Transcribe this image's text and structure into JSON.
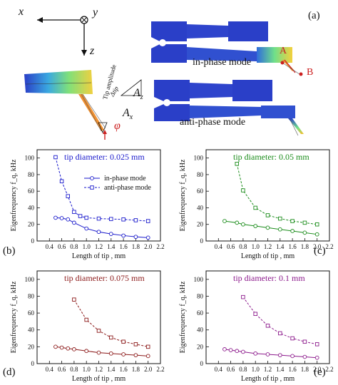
{
  "figure": {
    "panel_letters": {
      "a": "(a)",
      "b": "(b)",
      "c": "(c)",
      "d": "(d)",
      "e": "(e)"
    },
    "axes_glyph": {
      "x": "x",
      "y": "y",
      "z": "z"
    },
    "schematic_labels": {
      "in_phase": "in-phase mode",
      "anti_phase": "anti-phase mode",
      "point_a": "A",
      "point_b": "B",
      "tip_amplitude": "Tip amplitude",
      "delta_tip": "Δtip",
      "a_z": "A",
      "a_z_sub": "z",
      "a_x": "A",
      "a_x_sub": "x",
      "phi": "φ"
    }
  },
  "chart_data": [
    {
      "type": "line",
      "id": "b",
      "annotation": "tip diameter: 0.025 mm",
      "annotation_color": "#1a1acc",
      "series_color": "#1a1acc",
      "xlabel": "Length of tip , mm",
      "ylabel": "Eigenfrequency f_q, kHz",
      "xlim": [
        0.2,
        2.2
      ],
      "ylim": [
        0,
        110
      ],
      "xticks": [
        0.4,
        0.6,
        0.8,
        1.0,
        1.2,
        1.4,
        1.6,
        1.8,
        2.0,
        2.2
      ],
      "yticks": [
        0,
        20,
        40,
        60,
        80,
        100
      ],
      "legend": [
        "in-phase mode",
        "anti-phase mode"
      ],
      "series": [
        {
          "name": "in-phase mode",
          "style": "solid-circle",
          "x": [
            0.5,
            0.6,
            0.7,
            0.8,
            1.0,
            1.2,
            1.4,
            1.6,
            1.8,
            2.0
          ],
          "y": [
            28,
            27.5,
            26,
            22,
            15,
            11,
            8.5,
            6.5,
            5,
            4
          ]
        },
        {
          "name": "anti-phase mode",
          "style": "dashed-square",
          "x": [
            0.5,
            0.6,
            0.7,
            0.8,
            0.9,
            1.0,
            1.2,
            1.4,
            1.6,
            1.8,
            2.0
          ],
          "y": [
            101,
            72,
            54,
            35,
            30,
            28,
            27,
            26.5,
            26,
            25,
            24
          ]
        }
      ]
    },
    {
      "type": "line",
      "id": "c",
      "annotation": "tip diameter: 0.05 mm",
      "annotation_color": "#1a8c1a",
      "series_color": "#1a8c1a",
      "xlabel": "Length of tip , mm",
      "ylabel": "Eigenfrequency f_q, kHz",
      "xlim": [
        0.2,
        2.2
      ],
      "ylim": [
        0,
        110
      ],
      "xticks": [
        0.4,
        0.6,
        0.8,
        1.0,
        1.2,
        1.4,
        1.6,
        1.8,
        2.0,
        2.2
      ],
      "yticks": [
        0,
        20,
        40,
        60,
        80,
        100
      ],
      "series": [
        {
          "name": "in-phase mode",
          "style": "solid-circle",
          "x": [
            0.5,
            0.7,
            0.8,
            1.0,
            1.2,
            1.4,
            1.6,
            1.8,
            2.0
          ],
          "y": [
            24,
            22,
            20,
            18,
            16,
            14,
            12,
            10,
            8
          ]
        },
        {
          "name": "anti-phase mode",
          "style": "dashed-square",
          "x": [
            0.7,
            0.8,
            1.0,
            1.2,
            1.4,
            1.6,
            1.8,
            2.0
          ],
          "y": [
            93,
            61,
            40,
            31,
            27,
            24,
            22,
            20
          ]
        }
      ]
    },
    {
      "type": "line",
      "id": "d",
      "annotation": "tip diameter: 0.075 mm",
      "annotation_color": "#8c1a1a",
      "series_color": "#8c1a1a",
      "xlabel": "Length of tip , mm",
      "ylabel": "Eigenfrequency f_q, kHz",
      "xlim": [
        0.2,
        2.2
      ],
      "ylim": [
        0,
        110
      ],
      "xticks": [
        0.4,
        0.6,
        0.8,
        1.0,
        1.2,
        1.4,
        1.6,
        1.8,
        2.0,
        2.2
      ],
      "yticks": [
        0,
        20,
        40,
        60,
        80,
        100
      ],
      "series": [
        {
          "name": "in-phase mode",
          "style": "solid-circle",
          "x": [
            0.5,
            0.6,
            0.7,
            0.8,
            1.0,
            1.2,
            1.4,
            1.6,
            1.8,
            2.0
          ],
          "y": [
            20,
            19,
            18,
            17,
            15,
            13,
            12,
            11,
            10,
            9
          ]
        },
        {
          "name": "anti-phase mode",
          "style": "dashed-square",
          "x": [
            0.8,
            1.0,
            1.2,
            1.4,
            1.6,
            1.8,
            2.0
          ],
          "y": [
            76,
            52,
            39,
            31,
            26,
            23,
            20
          ]
        }
      ]
    },
    {
      "type": "line",
      "id": "e",
      "annotation": "tip diameter: 0.1 mm",
      "annotation_color": "#8c1a8c",
      "series_color": "#8c1a8c",
      "xlabel": "Length of tip , mm",
      "ylabel": "Eigenfrequency f_q, kHz",
      "xlim": [
        0.2,
        2.2
      ],
      "ylim": [
        0,
        110
      ],
      "xticks": [
        0.4,
        0.6,
        0.8,
        1.0,
        1.2,
        1.4,
        1.6,
        1.8,
        2.0,
        2.2
      ],
      "yticks": [
        0,
        20,
        40,
        60,
        80,
        100
      ],
      "series": [
        {
          "name": "in-phase mode",
          "style": "solid-circle",
          "x": [
            0.5,
            0.6,
            0.7,
            0.8,
            1.0,
            1.2,
            1.4,
            1.6,
            1.8,
            2.0
          ],
          "y": [
            17,
            16,
            15,
            14,
            12,
            11,
            10,
            9,
            8,
            7
          ]
        },
        {
          "name": "anti-phase mode",
          "style": "dashed-square",
          "x": [
            0.8,
            1.0,
            1.2,
            1.4,
            1.6,
            1.8,
            2.0
          ],
          "y": [
            79,
            59,
            45,
            36,
            30,
            26,
            23
          ]
        }
      ]
    }
  ]
}
